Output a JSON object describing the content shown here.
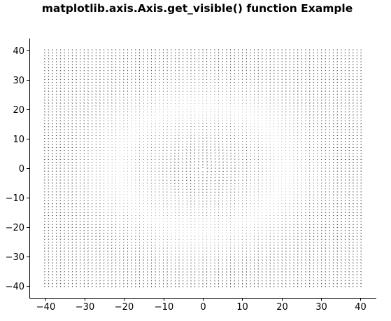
{
  "chart_data": {
    "type": "quiver",
    "title": "matplotlib.axis.Axis.get_visible() function Example",
    "xlabel": "",
    "ylabel": "",
    "xlim": [
      -44,
      44
    ],
    "ylim": [
      -44,
      44
    ],
    "x_range": [
      -40,
      40
    ],
    "y_range": [
      -40,
      40
    ],
    "grid_step": 1,
    "field": "radial vectors (u = x, v = y) on a grid from -40 to 40; arrows shrink to near zero around r = 21, forming a circular boundary",
    "circle_radius": 21,
    "x_ticks": [
      -40,
      -30,
      -20,
      -10,
      0,
      10,
      20,
      30,
      40
    ],
    "y_ticks": [
      -40,
      -30,
      -20,
      -10,
      0,
      10,
      20,
      30,
      40
    ],
    "x_tick_labels": [
      "−40",
      "−30",
      "−20",
      "−10",
      "0",
      "10",
      "20",
      "30",
      "40"
    ],
    "y_tick_labels": [
      "−40",
      "−30",
      "−20",
      "−10",
      "0",
      "10",
      "20",
      "30",
      "40"
    ],
    "grid": false,
    "spines": [
      "left",
      "bottom"
    ],
    "arrow_color": "#000000"
  }
}
